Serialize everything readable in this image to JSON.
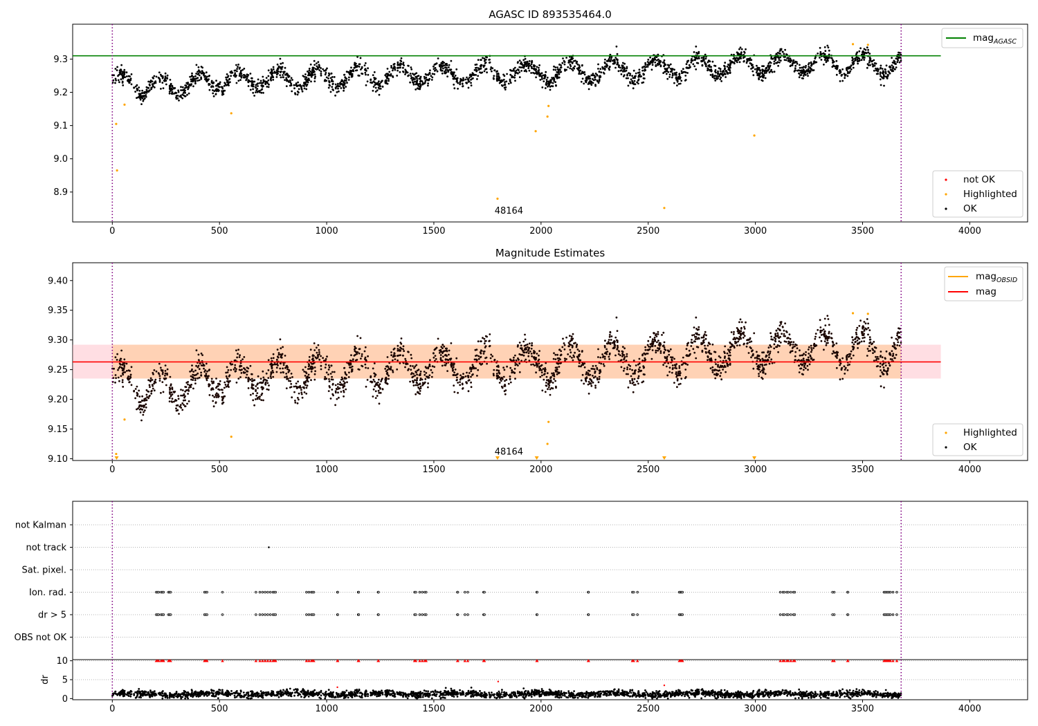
{
  "figure": {
    "title": "AGASC ID 893535464.0",
    "title2": "Magnitude Estimates"
  },
  "chart_data": [
    {
      "type": "scatter",
      "title": "AGASC ID 893535464.0",
      "xlabel": "",
      "ylabel": "",
      "xlim": [
        -185,
        4270
      ],
      "ylim": [
        8.81,
        9.405
      ],
      "xticks": [
        0,
        500,
        1000,
        1500,
        2000,
        2500,
        3000,
        3500,
        4000
      ],
      "yticks": [
        8.9,
        9.0,
        9.1,
        9.2,
        9.3
      ],
      "grid": false,
      "legend_upper": {
        "placement": "top-right",
        "entries": [
          {
            "label": "mag",
            "sub": "AGASC",
            "color": "#008000"
          }
        ]
      },
      "legend_lower": {
        "placement": "bottom-right",
        "entries": [
          {
            "label": "not OK",
            "color": "#ff0000"
          },
          {
            "label": "Highlighted",
            "color": "#ffa500"
          },
          {
            "label": "OK",
            "color": "#000000"
          }
        ]
      },
      "hline": {
        "name": "mag_AGASC",
        "value": 9.31,
        "color": "#008000"
      },
      "vlines": [
        0,
        3680
      ],
      "annotation": {
        "text": "48164",
        "x": 1850,
        "y": 8.835
      },
      "highlighted": [
        [
          18,
          9.105
        ],
        [
          22,
          8.965
        ],
        [
          57,
          9.163
        ],
        [
          555,
          9.137
        ],
        [
          1797,
          8.88
        ],
        [
          1975,
          9.083
        ],
        [
          2030,
          9.127
        ],
        [
          2035,
          9.159
        ],
        [
          2575,
          8.852
        ],
        [
          2995,
          9.07
        ],
        [
          3455,
          9.345
        ],
        [
          3525,
          9.343
        ]
      ],
      "ok_model": {
        "n_points": 2600,
        "x_range": [
          0,
          3680
        ],
        "trend": [
          [
            0,
            9.23
          ],
          [
            250,
            9.215
          ],
          [
            500,
            9.235
          ],
          [
            1000,
            9.245
          ],
          [
            1500,
            9.255
          ],
          [
            2000,
            9.26
          ],
          [
            2500,
            9.27
          ],
          [
            3000,
            9.285
          ],
          [
            3680,
            9.285
          ]
        ],
        "oscillation_amplitude": 0.028,
        "oscillation_period": 190,
        "noise": 0.012
      }
    },
    {
      "type": "scatter",
      "title": "Magnitude Estimates",
      "xlabel": "",
      "ylabel": "",
      "xlim": [
        -185,
        4270
      ],
      "ylim": [
        9.097,
        9.43
      ],
      "xticks": [
        0,
        500,
        1000,
        1500,
        2000,
        2500,
        3000,
        3500,
        4000
      ],
      "yticks": [
        9.1,
        9.15,
        9.2,
        9.25,
        9.3,
        9.35,
        9.4
      ],
      "grid": false,
      "legend_upper": {
        "placement": "top-right",
        "entries": [
          {
            "label": "mag",
            "sub": "OBSID",
            "color": "#ffa500"
          },
          {
            "label": "mag",
            "sub": "",
            "color": "#ff0000"
          }
        ]
      },
      "legend_lower": {
        "placement": "bottom-right",
        "entries": [
          {
            "label": "Highlighted",
            "color": "#ffa500"
          },
          {
            "label": "OK",
            "color": "#000000"
          }
        ]
      },
      "mag_line": {
        "value": 9.263,
        "color": "#ff0000"
      },
      "mag_band": {
        "low": 9.235,
        "high": 9.292,
        "color": "#ffb6c1"
      },
      "mag_obsid_band": {
        "low": 9.235,
        "high": 9.292,
        "x_range": [
          0,
          3680
        ],
        "color": "#ffa500"
      },
      "vlines": [
        0,
        3680
      ],
      "annotation": {
        "text": "48164",
        "x": 1850,
        "y": 9.107
      },
      "highlighted": [
        [
          18,
          9.108
        ],
        [
          57,
          9.166
        ],
        [
          555,
          9.137
        ],
        [
          2030,
          9.125
        ],
        [
          2035,
          9.162
        ],
        [
          3455,
          9.345
        ],
        [
          3525,
          9.344
        ]
      ],
      "clipped_markers": [
        20,
        1797,
        1980,
        2575,
        2995
      ]
    },
    {
      "type": "scatter",
      "title": "",
      "xlim": [
        -185,
        4270
      ],
      "xticks": [
        0,
        500,
        1000,
        1500,
        2000,
        2500,
        3000,
        3500,
        4000
      ],
      "flag_rows": [
        "not Kalman",
        "not track",
        "Sat. pixel.",
        "Ion. rad.",
        "dr > 5",
        "OBS not OK"
      ],
      "not_track": [
        730
      ],
      "flag_events": [
        [
          205,
          245
        ],
        [
          262,
          272
        ],
        [
          430,
          442
        ],
        [
          502,
          520
        ],
        [
          670,
          762
        ],
        [
          900,
          940
        ],
        [
          1050,
          1052
        ],
        [
          1147,
          1150
        ],
        [
          1240,
          1242
        ],
        [
          1410,
          1470
        ],
        [
          1610,
          1612
        ],
        [
          1645,
          1665
        ],
        [
          1732,
          1736
        ],
        [
          1980,
          1982
        ],
        [
          2220,
          2222
        ],
        [
          2420,
          2450
        ],
        [
          2645,
          2660
        ],
        [
          3110,
          3190
        ],
        [
          3360,
          3368
        ],
        [
          3430,
          3432
        ],
        [
          3600,
          3660
        ]
      ],
      "dr_panel": {
        "ylabel": "dr",
        "ylim": [
          -0.3,
          10.3
        ],
        "yticks": [
          0,
          5,
          10
        ],
        "clip_value": 10,
        "outliers": [
          [
            1050,
            3.0
          ],
          [
            1800,
            4.5
          ],
          [
            2575,
            3.5
          ]
        ],
        "baseline_mean": 1.2,
        "baseline_noise": 0.45
      }
    }
  ]
}
